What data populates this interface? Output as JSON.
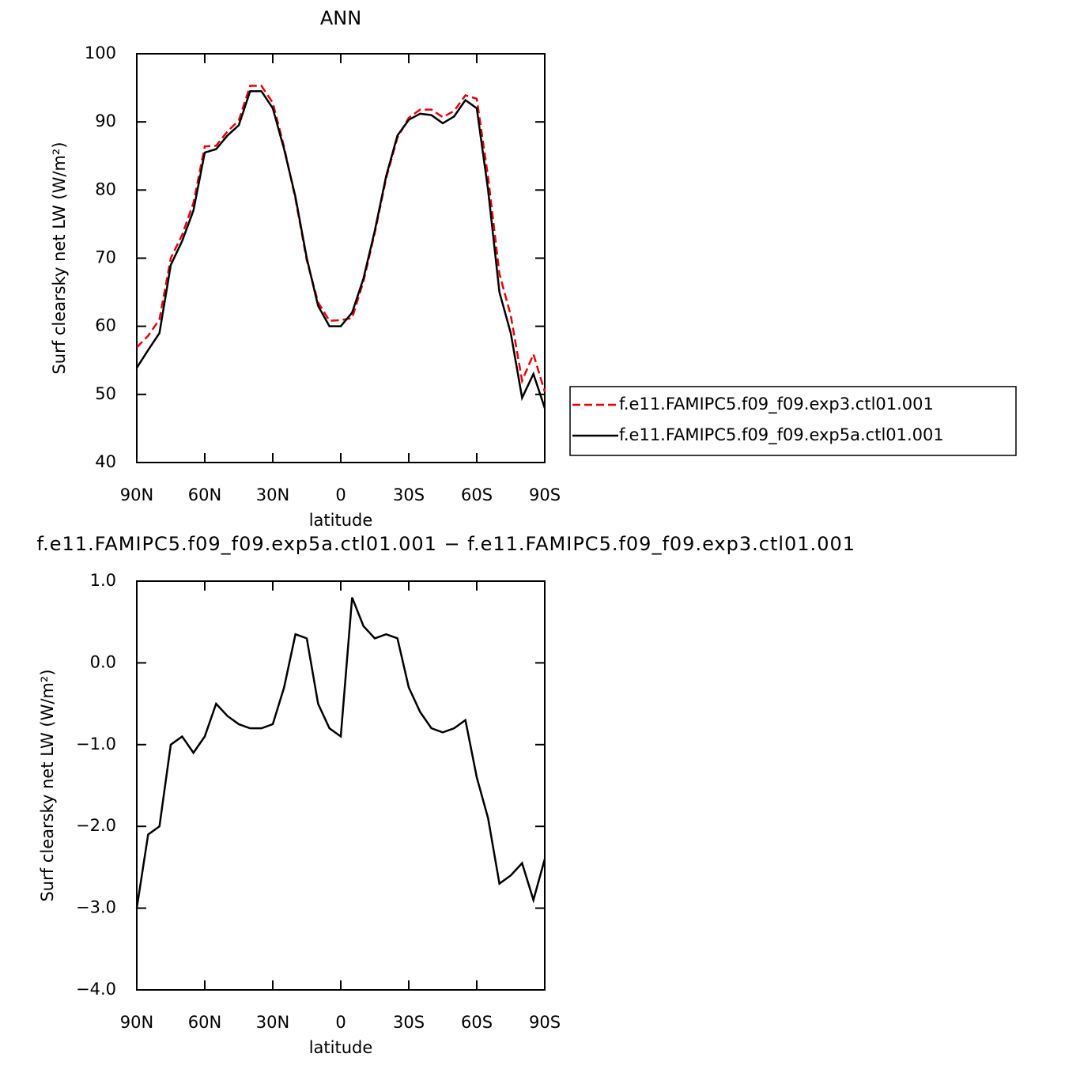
{
  "chart_data": [
    {
      "type": "line",
      "title": "ANN",
      "xlabel": "latitude",
      "ylabel": "Surf clearsky net LW (W/m²)",
      "x": [
        90,
        85,
        80,
        75,
        70,
        65,
        60,
        55,
        50,
        45,
        40,
        35,
        30,
        25,
        20,
        15,
        10,
        5,
        0,
        -5,
        -10,
        -15,
        -20,
        -25,
        -30,
        -35,
        -40,
        -45,
        -50,
        -55,
        -60,
        -65,
        -70,
        -75,
        -80,
        -85,
        -90
      ],
      "series": [
        {
          "name": "f.e11.FAMIPC5.f09_f09.exp3.ctl01.001",
          "color": "#e8000b",
          "dash": true,
          "values": [
            56.9,
            58.6,
            61,
            70,
            73.4,
            78.1,
            86.4,
            86.5,
            88.6,
            90.2,
            95.3,
            95.3,
            92.8,
            86.3,
            78.7,
            69.7,
            63.5,
            60.8,
            60.9,
            61.2,
            66.6,
            73.7,
            81.7,
            87.7,
            90.6,
            91.8,
            91.8,
            90.7,
            91.6,
            93.9,
            93.4,
            81.9,
            67.7,
            61.6,
            52,
            55.9,
            50.4
          ]
        },
        {
          "name": "f.e11.FAMIPC5.f09_f09.exp5a.ctl01.001",
          "color": "#000000",
          "dash": false,
          "values": [
            53.9,
            56.5,
            59,
            69,
            72.5,
            77,
            85.5,
            86,
            88,
            89.5,
            94.5,
            94.5,
            92,
            86,
            79,
            70,
            63,
            60,
            60,
            62,
            67,
            74,
            82,
            88,
            90.3,
            91.2,
            91,
            89.8,
            90.8,
            93.2,
            92,
            80,
            65,
            59,
            49.5,
            53,
            48
          ]
        }
      ],
      "xlim": [
        90,
        -90
      ],
      "xticks": [
        {
          "value": 90,
          "label": "90N"
        },
        {
          "value": 60,
          "label": "60N"
        },
        {
          "value": 30,
          "label": "30N"
        },
        0,
        {
          "value": -30,
          "label": "30S"
        },
        {
          "value": -60,
          "label": "60S"
        },
        {
          "value": -90,
          "label": "90S"
        }
      ],
      "ylim": [
        40,
        100
      ],
      "yticks": [
        40,
        50,
        60,
        70,
        80,
        90,
        100
      ],
      "legend": "right"
    },
    {
      "type": "line",
      "title": "f.e11.FAMIPC5.f09_f09.exp5a.ctl01.001 − f.e11.FAMIPC5.f09_f09.exp3.ctl01.001",
      "xlabel": "latitude",
      "ylabel": "Surf clearsky net LW (W/m²)",
      "x": [
        90,
        85,
        80,
        75,
        70,
        65,
        60,
        55,
        50,
        45,
        40,
        35,
        30,
        25,
        20,
        15,
        10,
        5,
        0,
        -5,
        -10,
        -15,
        -20,
        -25,
        -30,
        -35,
        -40,
        -45,
        -50,
        -55,
        -60,
        -65,
        -70,
        -75,
        -80,
        -85,
        -90
      ],
      "series": [
        {
          "color": "#000000",
          "dash": false,
          "values": [
            -3.0,
            -2.1,
            -2.0,
            -1.0,
            -0.9,
            -1.1,
            -0.9,
            -0.5,
            -0.65,
            -0.75,
            -0.8,
            -0.8,
            -0.75,
            -0.3,
            0.35,
            0.3,
            -0.5,
            -0.8,
            -0.9,
            0.8,
            0.45,
            0.3,
            0.35,
            0.3,
            -0.3,
            -0.6,
            -0.8,
            -0.85,
            -0.8,
            -0.7,
            -1.4,
            -1.9,
            -2.7,
            -2.6,
            -2.45,
            -2.9,
            -2.4
          ]
        }
      ],
      "xlim": [
        90,
        -90
      ],
      "xticks": [
        {
          "value": 90,
          "label": "90N"
        },
        {
          "value": 60,
          "label": "60N"
        },
        {
          "value": 30,
          "label": "30N"
        },
        0,
        {
          "value": -30,
          "label": "30S"
        },
        {
          "value": -60,
          "label": "60S"
        },
        {
          "value": -90,
          "label": "90S"
        }
      ],
      "ylim": [
        -4,
        1
      ],
      "yticks": [
        {
          "value": -4,
          "label": "−4.0"
        },
        {
          "value": -3,
          "label": "−3.0"
        },
        {
          "value": -2,
          "label": "−2.0"
        },
        {
          "value": -1,
          "label": "−1.0"
        },
        {
          "value": 0,
          "label": "0.0"
        },
        {
          "value": 1,
          "label": "1.0"
        }
      ]
    }
  ]
}
